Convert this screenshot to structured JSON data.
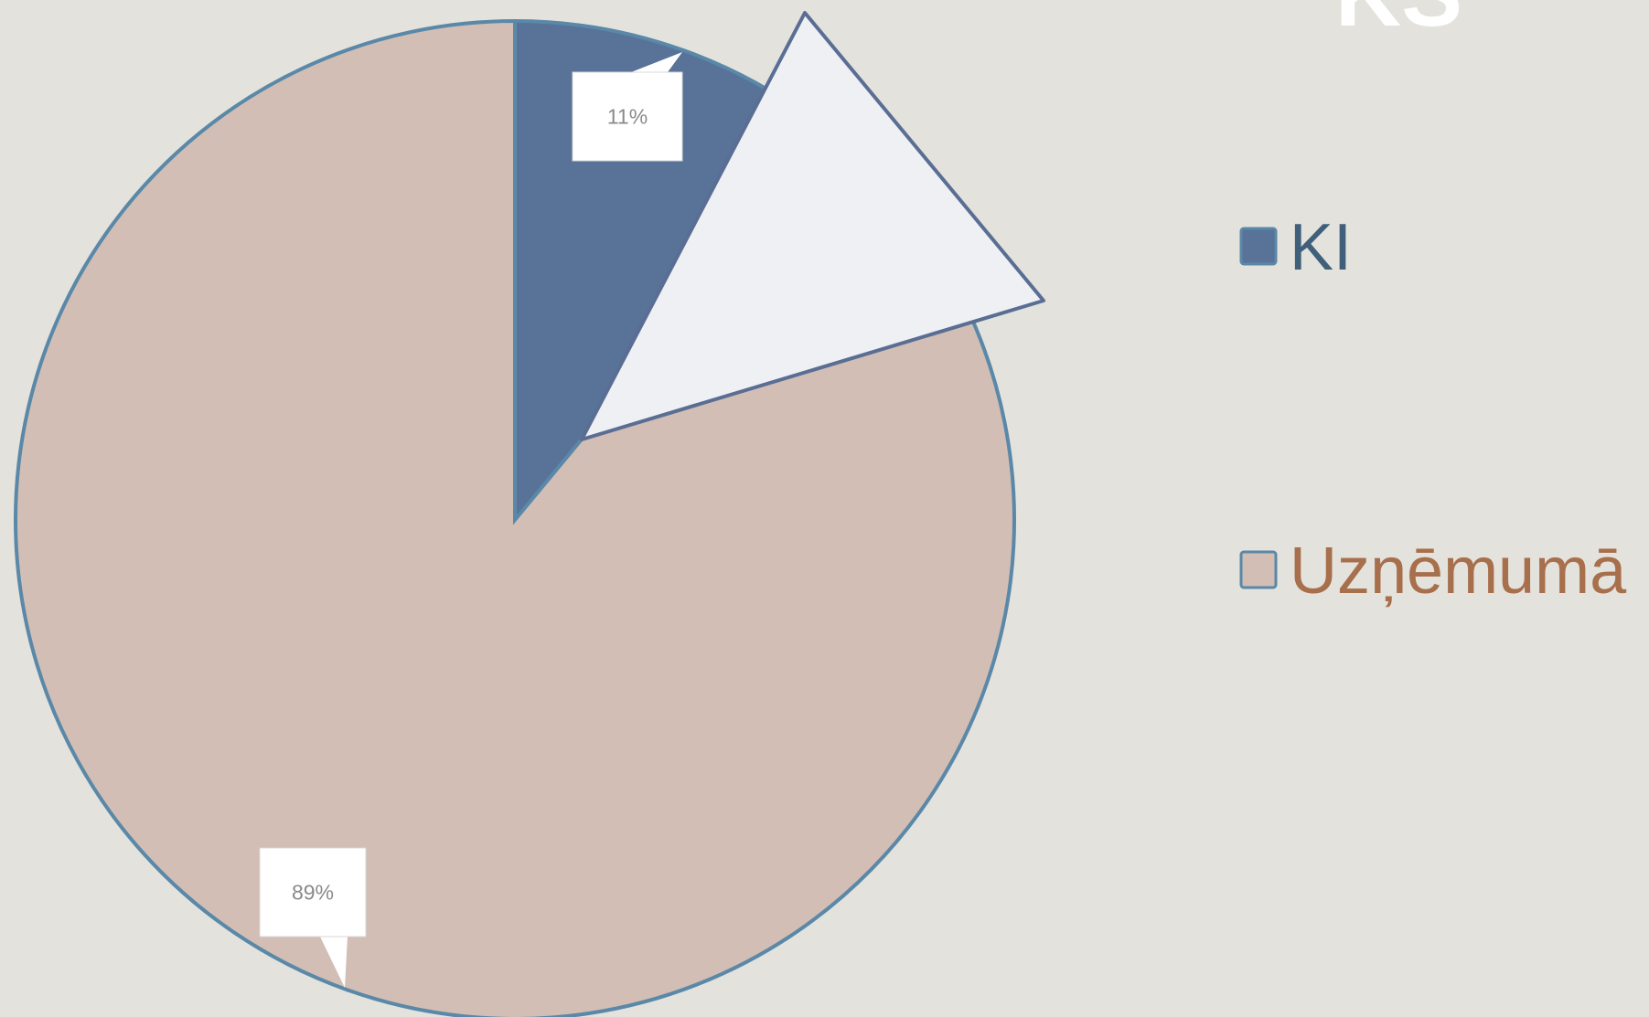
{
  "chart_data": {
    "type": "pie",
    "title": "KS",
    "categories": [
      "KI",
      "Uzņēmumā"
    ],
    "values": [
      11,
      89
    ],
    "value_labels": [
      "11%",
      "89%"
    ],
    "colors": [
      "#587298",
      "#d2beb4"
    ],
    "legend_colors": [
      "#3f5f7a",
      "#a86f4c"
    ],
    "legend": "right"
  }
}
